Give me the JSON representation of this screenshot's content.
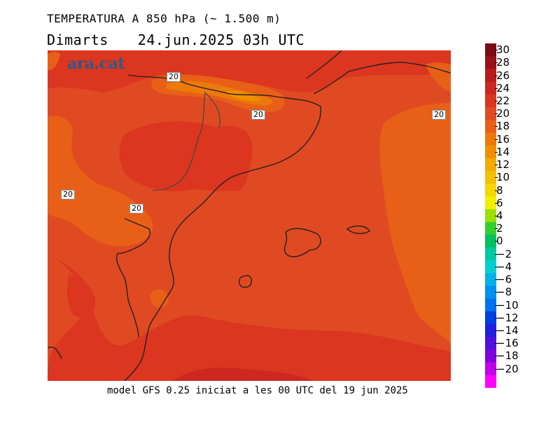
{
  "title": "TEMPERATURA A 850 hPa (~ 1.500 m)",
  "day": "Dimarts",
  "datetime": "24.jun.2025 03h UTC",
  "logo": "ara.cat",
  "footer": "model GFS 0.25 iniciat a les 00 UTC del 19 jun 2025",
  "contour_labels": [
    "20",
    "20",
    "20",
    "20",
    "20"
  ],
  "legend": {
    "ticks": [
      "30",
      "28",
      "26",
      "24",
      "22",
      "20",
      "18",
      "16",
      "14",
      "12",
      "10",
      "8",
      "6",
      "4",
      "2",
      "0",
      "−2",
      "−4",
      "−6",
      "−8",
      "−10",
      "−12",
      "−14",
      "−16",
      "−18",
      "−20"
    ],
    "colors": [
      "#7a0a14",
      "#9a1018",
      "#b81a1a",
      "#cc2820",
      "#dc3520",
      "#e04a22",
      "#e86018",
      "#ec7a0a",
      "#f09000",
      "#f5aa00",
      "#f5c000",
      "#f5d800",
      "#f0f000",
      "#9ae000",
      "#30d030",
      "#00c060",
      "#00c8a0",
      "#00d0d0",
      "#00b0e8",
      "#0090f0",
      "#0070f0",
      "#0040e0",
      "#2020e0",
      "#5010e0",
      "#8000e0",
      "#c000e8",
      "#ff00ff"
    ]
  }
}
